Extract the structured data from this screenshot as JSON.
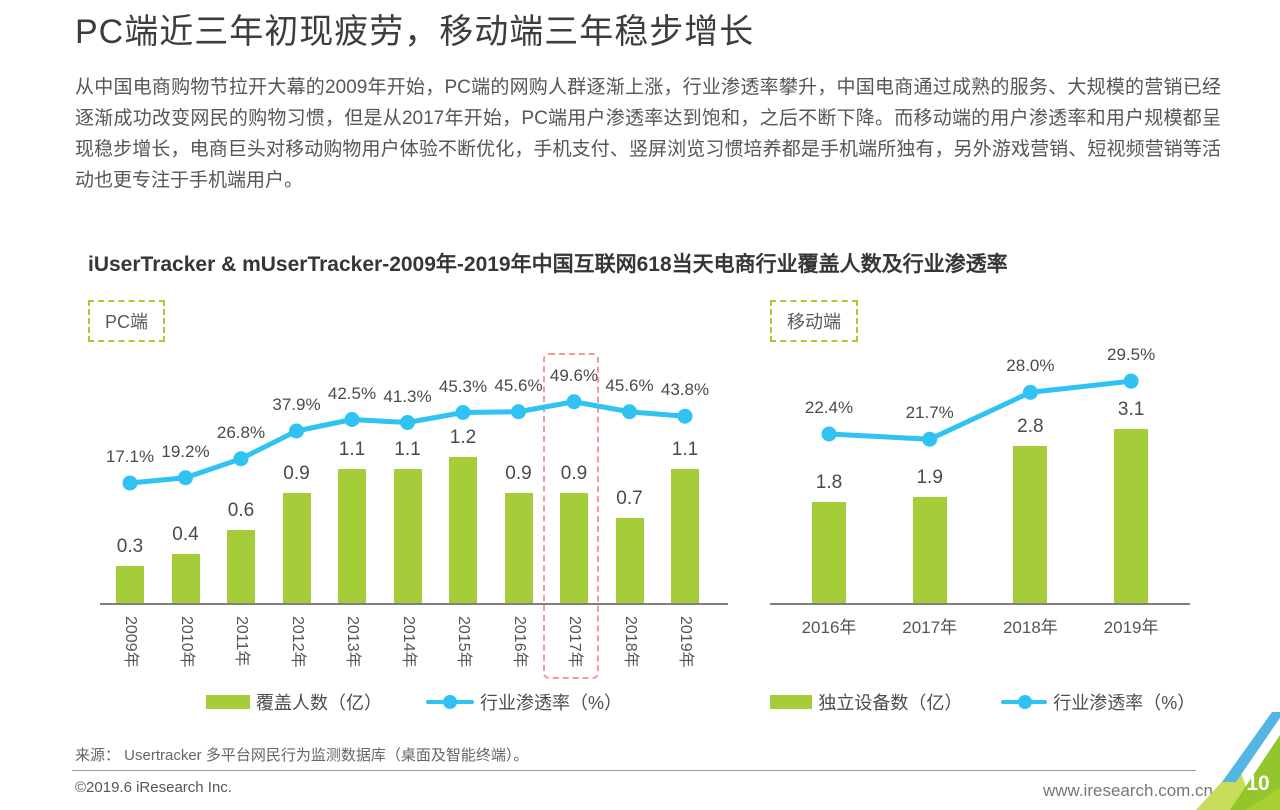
{
  "page": {
    "title": "PC端近三年初现疲劳，移动端三年稳步增长",
    "paragraph": "从中国电商购物节拉开大幕的2009年开始，PC端的网购人群逐渐上涨，行业渗透率攀升，中国电商通过成熟的服务、大规模的营销已经逐渐成功改变网民的购物习惯，但是从2017年开始，PC端用户渗透率达到饱和，之后不断下降。而移动端的用户渗透率和用户规模都呈现稳步增长，电商巨头对移动购物用户体验不断优化，手机支付、竖屏浏览习惯培养都是手机端所独有，另外游戏营销、短视频营销等活动也更专注于手机端用户。",
    "chart_heading": "iUserTracker & mUserTracker-2009年-2019年中国互联网618当天电商行业覆盖人数及行业渗透率",
    "pc_badge": "PC端",
    "mobile_badge": "移动端"
  },
  "colors": {
    "bar_green": "#a5cd39",
    "line_blue": "#2fc2f2",
    "highlight_dash": "#f49b94",
    "badge_dash": "#a9cb2d",
    "axis_gray": "#7f7f7f",
    "corner_blue": "#54b5e5",
    "corner_green": "#95c52c",
    "corner_light_green": "#c6dc5a"
  },
  "chart_data": [
    {
      "type": "bar+line",
      "name": "PC端",
      "categories": [
        "2009年",
        "2010年",
        "2011年",
        "2012年",
        "2013年",
        "2014年",
        "2015年",
        "2016年",
        "2017年",
        "2018年",
        "2019年"
      ],
      "series": [
        {
          "name": "覆盖人数（亿）",
          "kind": "bar",
          "unit": "亿",
          "values": [
            0.3,
            0.4,
            0.6,
            0.9,
            1.1,
            1.1,
            1.2,
            0.9,
            0.9,
            0.7,
            1.1
          ]
        },
        {
          "name": "行业渗透率（%）",
          "kind": "line",
          "unit": "%",
          "values": [
            17.1,
            19.2,
            26.8,
            37.9,
            42.5,
            41.3,
            45.3,
            45.6,
            49.6,
            45.6,
            43.8
          ]
        }
      ],
      "highlight_category": "2017年",
      "legend_position": "bottom",
      "grid": false
    },
    {
      "type": "bar+line",
      "name": "移动端",
      "categories": [
        "2016年",
        "2017年",
        "2018年",
        "2019年"
      ],
      "series": [
        {
          "name": "独立设备数（亿）",
          "kind": "bar",
          "unit": "亿",
          "values": [
            1.8,
            1.9,
            2.8,
            3.1
          ]
        },
        {
          "name": "行业渗透率（%）",
          "kind": "line",
          "unit": "%",
          "values": [
            22.4,
            21.7,
            28.0,
            29.5
          ]
        }
      ],
      "legend_position": "bottom",
      "grid": false
    }
  ],
  "footer": {
    "source": "来源： Usertracker 多平台网民行为监测数据库（桌面及智能终端）。",
    "copyright": "©2019.6 iResearch Inc.",
    "website": "www.iresearch.com.cn",
    "page_number": "10"
  }
}
